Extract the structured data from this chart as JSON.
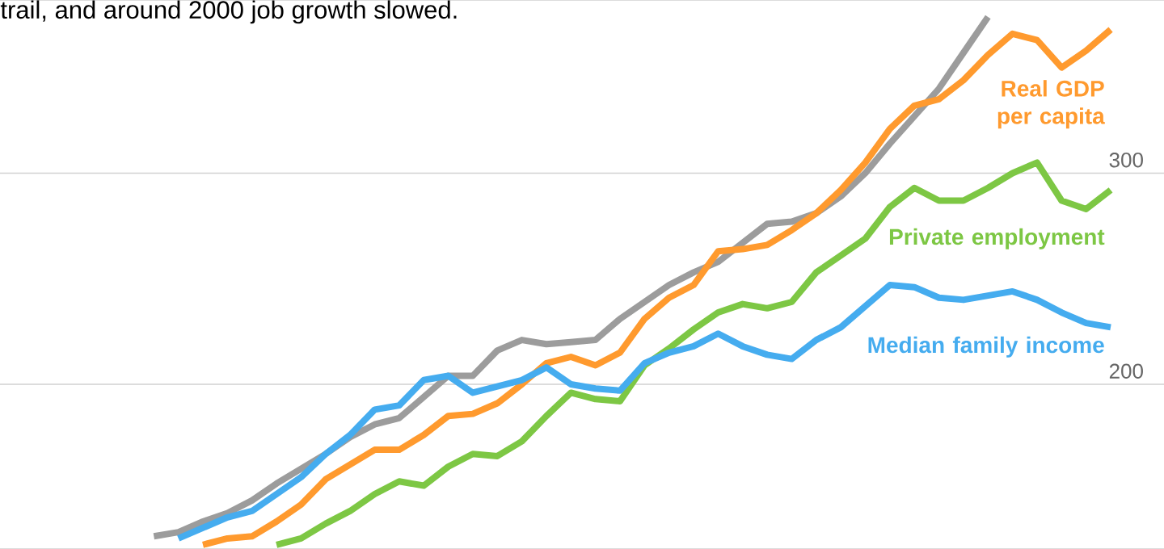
{
  "chart_data": {
    "type": "line",
    "title": "trail, and around 2000 job growth slowed.",
    "categories": [
      null,
      null,
      null,
      null,
      null,
      null,
      null,
      null,
      null,
      null,
      null,
      null,
      null,
      null,
      null,
      null,
      null,
      null,
      null,
      null,
      null,
      null,
      null,
      null,
      null,
      null,
      null,
      null,
      null,
      null,
      null,
      null,
      null,
      null,
      null,
      null,
      null,
      null,
      null,
      null,
      null
    ],
    "series": [
      {
        "color": "#9c9c9c",
        "values": [
          null,
          128,
          130,
          135,
          139,
          145,
          153,
          160,
          167,
          175,
          181,
          184,
          194,
          204,
          204,
          216,
          221,
          219,
          220,
          221,
          231,
          239,
          247,
          253,
          258,
          267,
          276,
          277,
          281,
          289,
          300,
          314,
          327,
          340,
          357,
          374,
          null,
          null,
          null,
          null,
          null
        ]
      },
      {
        "name": "Real GDP per capita",
        "color": "#ff9a2e",
        "values": [
          null,
          null,
          null,
          124,
          127,
          128,
          135,
          143,
          155,
          162,
          169,
          169,
          176,
          185,
          186,
          191,
          200,
          210,
          213,
          209,
          215,
          231,
          241,
          247,
          263,
          264,
          266,
          273,
          281,
          292,
          305,
          321,
          332,
          335,
          344,
          356,
          366,
          363,
          350,
          358,
          368
        ]
      },
      {
        "name": "Private employment",
        "color": "#7dc744",
        "values": [
          null,
          null,
          null,
          null,
          null,
          null,
          124,
          127,
          134,
          140,
          148,
          154,
          152,
          161,
          167,
          166,
          173,
          185,
          196,
          193,
          192,
          209,
          217,
          226,
          234,
          238,
          236,
          239,
          253,
          261,
          269,
          284,
          293,
          287,
          287,
          293,
          300,
          305,
          287,
          283,
          292
        ]
      },
      {
        "name": "Median family income",
        "color": "#45acef",
        "values": [
          null,
          null,
          127,
          132,
          137,
          140,
          148,
          156,
          167,
          176,
          188,
          190,
          202,
          204,
          196,
          199,
          202,
          208,
          200,
          198,
          197,
          210,
          215,
          218,
          224,
          218,
          214,
          212,
          221,
          227,
          237,
          247,
          246,
          241,
          240,
          242,
          244,
          240,
          234,
          229,
          227
        ]
      }
    ],
    "ylim": [
      122,
      382
    ],
    "yticks": [
      200,
      300
    ],
    "grid": "y"
  }
}
